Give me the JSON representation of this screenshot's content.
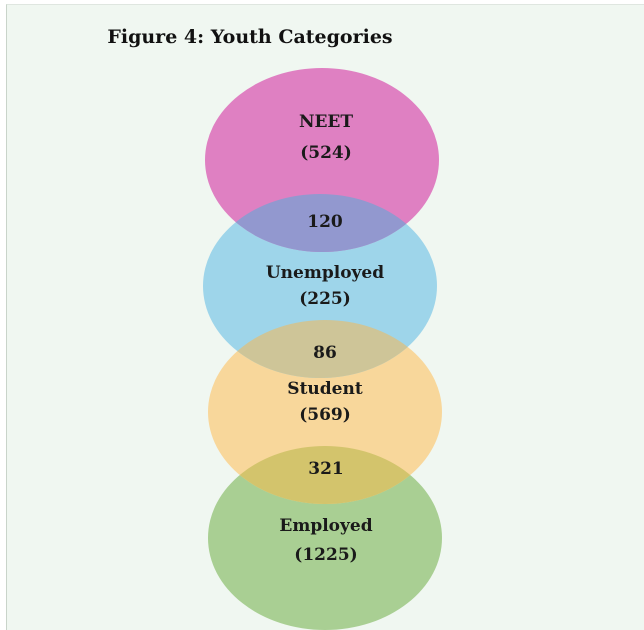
{
  "title": "Figure 4: Youth Categories",
  "categories": [
    {
      "label": "NEET",
      "count": "(524)",
      "color": "#df80c2"
    },
    {
      "label": "Unemployed",
      "count": "(225)",
      "color": "#9ed5ea"
    },
    {
      "label": "Student",
      "count": "(569)",
      "color": "#f8d79b"
    },
    {
      "label": "Employed",
      "count": "(1225)",
      "color": "#a9cf93"
    }
  ],
  "overlaps": [
    {
      "between": [
        "NEET",
        "Unemployed"
      ],
      "value": "120",
      "color": "#9298cf"
    },
    {
      "between": [
        "Unemployed",
        "Student"
      ],
      "value": "86",
      "color": "#cec598"
    },
    {
      "between": [
        "Student",
        "Employed"
      ],
      "value": "321",
      "color": "#d3c46c"
    }
  ]
}
